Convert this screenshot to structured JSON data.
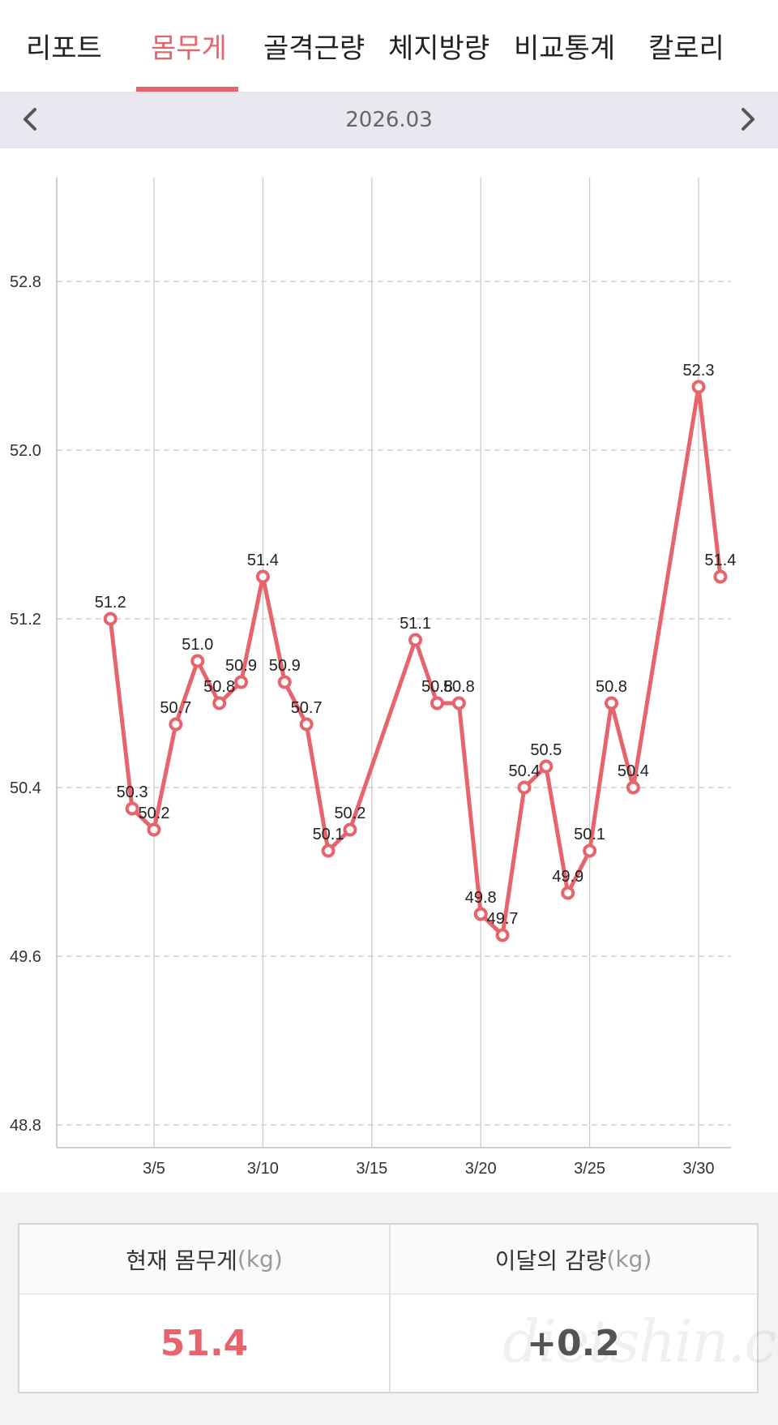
{
  "tabs": [
    {
      "label": "리포트",
      "active": false
    },
    {
      "label": "몸무게",
      "active": true
    },
    {
      "label": "골격근량",
      "active": false
    },
    {
      "label": "체지방량",
      "active": false
    },
    {
      "label": "비교통계",
      "active": false
    },
    {
      "label": "칼로리",
      "active": false
    }
  ],
  "month": "2026.03",
  "colors": {
    "accent": "#e8646c",
    "monthbar": "#e9e7f0",
    "grid": "#c8c8c8"
  },
  "icons": {
    "prev": "chevron-left-icon",
    "next": "chevron-right-icon"
  },
  "chart_data": {
    "type": "line",
    "title": "",
    "xlabel": "",
    "ylabel": "",
    "x_ticks": [
      "3/5",
      "3/10",
      "3/15",
      "3/20",
      "3/25",
      "3/30"
    ],
    "y_ticks": [
      "48.8",
      "49.6",
      "50.4",
      "51.2",
      "52.0",
      "52.8"
    ],
    "xlim": [
      1,
      32
    ],
    "ylim": [
      48.7,
      53.3
    ],
    "grid": true,
    "series": [
      {
        "points": [
          {
            "day": 3,
            "value": 51.2,
            "label": "51.2"
          },
          {
            "day": 4,
            "value": 50.3,
            "label": "50.3"
          },
          {
            "day": 5,
            "value": 50.2,
            "label": "50.2"
          },
          {
            "day": 6,
            "value": 50.7,
            "label": "50.7"
          },
          {
            "day": 7,
            "value": 51.0,
            "label": "51.0"
          },
          {
            "day": 8,
            "value": 50.8,
            "label": "50.8"
          },
          {
            "day": 9,
            "value": 50.9,
            "label": "50.9"
          },
          {
            "day": 10,
            "value": 51.4,
            "label": "51.4"
          },
          {
            "day": 11,
            "value": 50.9,
            "label": "50.9"
          },
          {
            "day": 12,
            "value": 50.7,
            "label": "50.7"
          },
          {
            "day": 13,
            "value": 50.1,
            "label": "50.1"
          },
          {
            "day": 14,
            "value": 50.2,
            "label": "50.2"
          },
          {
            "day": 17,
            "value": 51.1,
            "label": "51.1"
          },
          {
            "day": 18,
            "value": 50.8,
            "label": "50.8"
          },
          {
            "day": 19,
            "value": 50.8,
            "label": "50.8"
          },
          {
            "day": 20,
            "value": 49.8,
            "label": "49.8"
          },
          {
            "day": 21,
            "value": 49.7,
            "label": "49.7"
          },
          {
            "day": 22,
            "value": 50.4,
            "label": "50.4"
          },
          {
            "day": 23,
            "value": 50.5,
            "label": "50.5"
          },
          {
            "day": 24,
            "value": 49.9,
            "label": "49.9"
          },
          {
            "day": 25,
            "value": 50.1,
            "label": "50.1"
          },
          {
            "day": 26,
            "value": 50.8,
            "label": "50.8"
          },
          {
            "day": 27,
            "value": 50.4,
            "label": "50.4"
          },
          {
            "day": 30,
            "value": 52.3,
            "label": "52.3"
          },
          {
            "day": 31,
            "value": 51.4,
            "label": "51.4"
          }
        ]
      }
    ]
  },
  "summary": {
    "current": {
      "title": "현재 몸무게",
      "unit": "(kg)",
      "value": "51.4"
    },
    "change": {
      "title": "이달의 감량",
      "unit": "(kg)",
      "value": "+0.2"
    }
  },
  "watermark": "dietshin.com"
}
